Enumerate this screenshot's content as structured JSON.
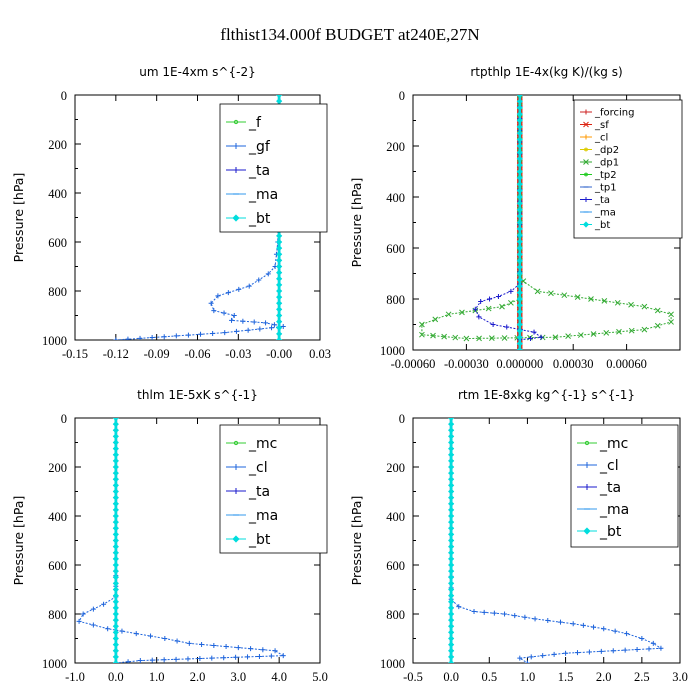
{
  "page_title": "flthist134.000f  BUDGET at240E,27N",
  "chart_data": [
    {
      "type": "line",
      "title": "um  1E-4xm s^{-2}",
      "ylabel": "Pressure [hPa]",
      "xlim": [
        -0.15,
        0.03
      ],
      "ylim": [
        1000,
        0
      ],
      "xticks": [
        "-0.15",
        "-0.12",
        "-0.09",
        "-0.06",
        "-0.03",
        "-0.00",
        "0.03"
      ],
      "xtick_values": [
        -0.15,
        -0.12,
        -0.09,
        -0.06,
        -0.03,
        0.0,
        0.03
      ],
      "yticks": [
        "0",
        "200",
        "400",
        "600",
        "800",
        "1000"
      ],
      "ytick_values": [
        0,
        200,
        400,
        600,
        800,
        1000
      ],
      "legend_position": "top-right",
      "series": [
        {
          "name": "_f",
          "color": "#33cc33",
          "marker": "circle",
          "x": [
            0,
            0,
            0,
            0,
            0,
            0,
            0,
            0,
            0,
            0,
            0
          ],
          "y": [
            0,
            100,
            200,
            300,
            400,
            500,
            600,
            700,
            800,
            900,
            1000
          ]
        },
        {
          "name": "_gf",
          "color": "#1e64dc",
          "marker": "plus",
          "x": [
            0.0,
            0.0,
            0.0,
            0.003,
            0.005,
            0.002,
            0.001,
            0.0,
            -0.001,
            -0.003,
            -0.008,
            -0.022,
            -0.045,
            -0.05,
            -0.048,
            -0.033,
            -0.035,
            -0.01,
            0.003,
            -0.04,
            -0.12
          ],
          "y": [
            0,
            100,
            160,
            180,
            190,
            220,
            250,
            400,
            600,
            700,
            730,
            780,
            820,
            850,
            880,
            900,
            920,
            930,
            945,
            970,
            1000
          ]
        },
        {
          "name": "_ta",
          "color": "#1a1acc",
          "marker": "plus",
          "x": [
            0,
            0,
            0,
            0,
            0,
            0,
            0
          ],
          "y": [
            0,
            200,
            400,
            600,
            800,
            950,
            1000
          ]
        },
        {
          "name": "_ma",
          "color": "#3399ee",
          "marker": "dash",
          "x": [
            0,
            0,
            0,
            0,
            0,
            0,
            0
          ],
          "y": [
            0,
            200,
            400,
            600,
            800,
            950,
            1000
          ]
        },
        {
          "name": "_bt",
          "color": "#00dddd",
          "marker": "diamond",
          "x": [
            0,
            0,
            0,
            0,
            0,
            0,
            0
          ],
          "y": [
            0,
            200,
            400,
            600,
            800,
            950,
            1000
          ]
        }
      ]
    },
    {
      "type": "line",
      "title": "rtpthlp  1E-4x(kg K)/(kg s)",
      "ylabel": "Pressure [hPa]",
      "xlim": [
        -0.0006,
        0.0009
      ],
      "ylim": [
        1000,
        0
      ],
      "xticks": [
        "-0.00060",
        "-0.00030",
        "0.000000",
        "0.00030",
        "0.00060"
      ],
      "xtick_values": [
        -0.0006,
        -0.0003,
        0.0,
        0.0003,
        0.0006
      ],
      "yticks": [
        "0",
        "200",
        "400",
        "600",
        "800",
        "1000"
      ],
      "ytick_values": [
        0,
        200,
        400,
        600,
        800,
        1000
      ],
      "legend_position": "top-right",
      "series": [
        {
          "name": "_forcing",
          "color": "#cc2222",
          "marker": "plus",
          "x": [
            0,
            0,
            0,
            0,
            0,
            0,
            0
          ],
          "y": [
            0,
            200,
            400,
            600,
            800,
            950,
            1000
          ]
        },
        {
          "name": "_sf",
          "color": "#dd2211",
          "marker": "cross",
          "x": [
            0,
            0,
            0,
            0,
            0,
            0,
            0
          ],
          "y": [
            0,
            200,
            400,
            600,
            800,
            950,
            1000
          ]
        },
        {
          "name": "_cl",
          "color": "#ff9900",
          "marker": "plus",
          "x": [
            0,
            0,
            0,
            0,
            0,
            0,
            0
          ],
          "y": [
            0,
            200,
            400,
            600,
            800,
            950,
            1000
          ]
        },
        {
          "name": "_dp2",
          "color": "#ddcc00",
          "marker": "circle",
          "x": [
            0,
            0,
            0,
            0,
            0,
            0,
            0
          ],
          "y": [
            0,
            200,
            400,
            600,
            800,
            950,
            1000
          ]
        },
        {
          "name": "_dp1",
          "color": "#33aa33",
          "marker": "cross",
          "x": [
            0,
            0,
            0,
            2e-05,
            0.0001,
            0.0004,
            0.0007,
            0.00085,
            0.00085,
            0.0007,
            0.0002,
            -0.0003,
            -0.00055,
            -0.00055,
            -0.0004,
            -0.0001,
            0
          ],
          "y": [
            0,
            400,
            700,
            730,
            770,
            800,
            830,
            860,
            890,
            920,
            950,
            955,
            940,
            900,
            860,
            830,
            800
          ]
        },
        {
          "name": "_tp2",
          "color": "#22cc22",
          "marker": "circle",
          "x": [
            0,
            0,
            0,
            0,
            0,
            0,
            0
          ],
          "y": [
            0,
            200,
            400,
            600,
            800,
            950,
            1000
          ]
        },
        {
          "name": "_tp1",
          "color": "#3366cc",
          "marker": "dash",
          "x": [
            0,
            0,
            0,
            0,
            0,
            0,
            0
          ],
          "y": [
            0,
            200,
            400,
            600,
            800,
            950,
            1000
          ]
        },
        {
          "name": "_ta",
          "color": "#1a1acc",
          "marker": "plus",
          "x": [
            0,
            0,
            -5e-05,
            -0.00012,
            -0.00022,
            -0.00025,
            -0.00023,
            -0.00015,
            8e-05,
            0.00012,
            0.0
          ],
          "y": [
            0,
            740,
            770,
            790,
            810,
            840,
            870,
            900,
            930,
            950,
            960
          ]
        },
        {
          "name": "_ma",
          "color": "#3399ee",
          "marker": "dash",
          "x": [
            0,
            0,
            0,
            0,
            0,
            0,
            0
          ],
          "y": [
            0,
            200,
            400,
            600,
            800,
            950,
            1000
          ]
        },
        {
          "name": "_bt",
          "color": "#00dddd",
          "marker": "diamond",
          "x": [
            0,
            0,
            0,
            0,
            0,
            0,
            0
          ],
          "y": [
            0,
            200,
            400,
            600,
            800,
            950,
            1000
          ]
        }
      ]
    },
    {
      "type": "line",
      "title": "thlm  1E-5xK s^{-1}",
      "ylabel": "Pressure [hPa]",
      "xlim": [
        -1.0,
        5.0
      ],
      "ylim": [
        1000,
        0
      ],
      "xticks": [
        "-1.0",
        "0.0",
        "1.0",
        "2.0",
        "3.0",
        "4.0",
        "5.0"
      ],
      "xtick_values": [
        -1,
        0,
        1,
        2,
        3,
        4,
        5
      ],
      "yticks": [
        "0",
        "200",
        "400",
        "600",
        "800",
        "1000"
      ],
      "ytick_values": [
        0,
        200,
        400,
        600,
        800,
        1000
      ],
      "legend_position": "top-right",
      "series": [
        {
          "name": "_mc",
          "color": "#33cc33",
          "marker": "circle",
          "x": [
            0,
            0,
            0,
            0,
            0,
            0,
            0
          ],
          "y": [
            0,
            200,
            400,
            600,
            800,
            950,
            1000
          ]
        },
        {
          "name": "_cl",
          "color": "#1e64dc",
          "marker": "plus",
          "x": [
            0,
            0,
            0,
            -0.3,
            -0.8,
            -0.9,
            -0.2,
            0.5,
            1.2,
            1.8,
            3.9,
            4.1,
            0.6,
            0.0
          ],
          "y": [
            0,
            600,
            730,
            760,
            800,
            830,
            860,
            880,
            900,
            920,
            950,
            970,
            990,
            1000
          ]
        },
        {
          "name": "_ta",
          "color": "#1a1acc",
          "marker": "plus",
          "x": [
            0,
            0,
            0,
            0,
            0,
            0,
            0
          ],
          "y": [
            0,
            200,
            400,
            600,
            800,
            950,
            1000
          ]
        },
        {
          "name": "_ma",
          "color": "#3399ee",
          "marker": "dash",
          "x": [
            0,
            0,
            0,
            0,
            0,
            0,
            0
          ],
          "y": [
            0,
            200,
            400,
            600,
            800,
            950,
            1000
          ]
        },
        {
          "name": "_bt",
          "color": "#00dddd",
          "marker": "diamond",
          "x": [
            0,
            0,
            0,
            0,
            0,
            0,
            0
          ],
          "y": [
            0,
            200,
            400,
            600,
            800,
            950,
            1000
          ]
        }
      ]
    },
    {
      "type": "line",
      "title": "rtm  1E-8xkg kg^{-1} s^{-1}",
      "ylabel": "Pressure [hPa]",
      "xlim": [
        -0.5,
        3.0
      ],
      "ylim": [
        1000,
        0
      ],
      "xticks": [
        "-0.5",
        "0.0",
        "0.5",
        "1.0",
        "1.5",
        "2.0",
        "2.5",
        "3.0"
      ],
      "xtick_values": [
        -0.5,
        0,
        0.5,
        1,
        1.5,
        2,
        2.5,
        3
      ],
      "yticks": [
        "0",
        "200",
        "400",
        "600",
        "800",
        "1000"
      ],
      "ytick_values": [
        0,
        200,
        400,
        600,
        800,
        1000
      ],
      "legend_position": "top-right",
      "series": [
        {
          "name": "_mc",
          "color": "#33cc33",
          "marker": "circle",
          "x": [
            0,
            0,
            0,
            0,
            0,
            0,
            0
          ],
          "y": [
            0,
            200,
            400,
            600,
            800,
            950,
            1000
          ]
        },
        {
          "name": "_cl",
          "color": "#1e64dc",
          "marker": "plus",
          "x": [
            0,
            0,
            0,
            0.1,
            0.3,
            0.7,
            1.1,
            1.6,
            2.0,
            2.3,
            2.5,
            2.65,
            2.75,
            1.5,
            0.9,
            1.0
          ],
          "y": [
            0,
            600,
            740,
            770,
            790,
            800,
            820,
            840,
            860,
            880,
            900,
            920,
            940,
            960,
            980,
            1000
          ]
        },
        {
          "name": "_ta",
          "color": "#1a1acc",
          "marker": "plus",
          "x": [
            0,
            0,
            0,
            0,
            0,
            0,
            0
          ],
          "y": [
            0,
            200,
            400,
            600,
            800,
            950,
            1000
          ]
        },
        {
          "name": "_ma",
          "color": "#3399ee",
          "marker": "dash",
          "x": [
            0,
            0,
            0,
            0,
            0,
            0,
            0
          ],
          "y": [
            0,
            200,
            400,
            600,
            800,
            950,
            1000
          ]
        },
        {
          "name": "_bt",
          "color": "#00dddd",
          "marker": "diamond",
          "x": [
            0,
            0,
            0,
            0,
            0,
            0,
            0
          ],
          "y": [
            0,
            200,
            400,
            600,
            800,
            950,
            1000
          ]
        }
      ]
    }
  ]
}
